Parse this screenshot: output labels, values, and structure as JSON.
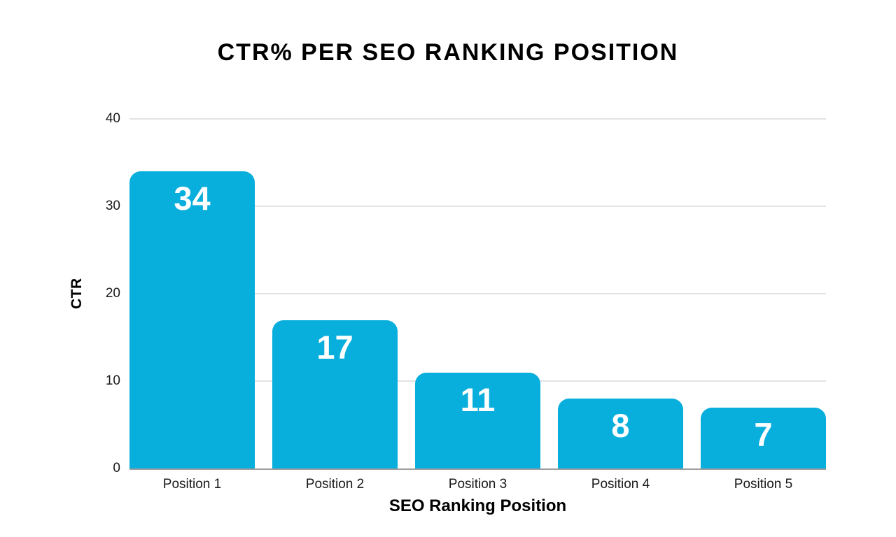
{
  "page": {
    "background": "#ffffff"
  },
  "chart_data": {
    "type": "bar",
    "title": "CTR% PER SEO RANKING POSITION",
    "xlabel": "SEO Ranking Position",
    "ylabel": "CTR",
    "categories": [
      "Position 1",
      "Position 2",
      "Position 3",
      "Position 4",
      "Position 5"
    ],
    "values": [
      34,
      17,
      11,
      8,
      7
    ],
    "ylim": [
      0,
      40
    ],
    "yticks": [
      0,
      10,
      20,
      30,
      40
    ],
    "grid": true,
    "legend": false,
    "bar_color": "#08aedc",
    "value_label_color": "#ffffff",
    "gridline_color": "#e3e3e3",
    "axisline_color": "#9e9e9e",
    "title_color": "#000000",
    "tick_label_color": "#1a1a1a"
  }
}
